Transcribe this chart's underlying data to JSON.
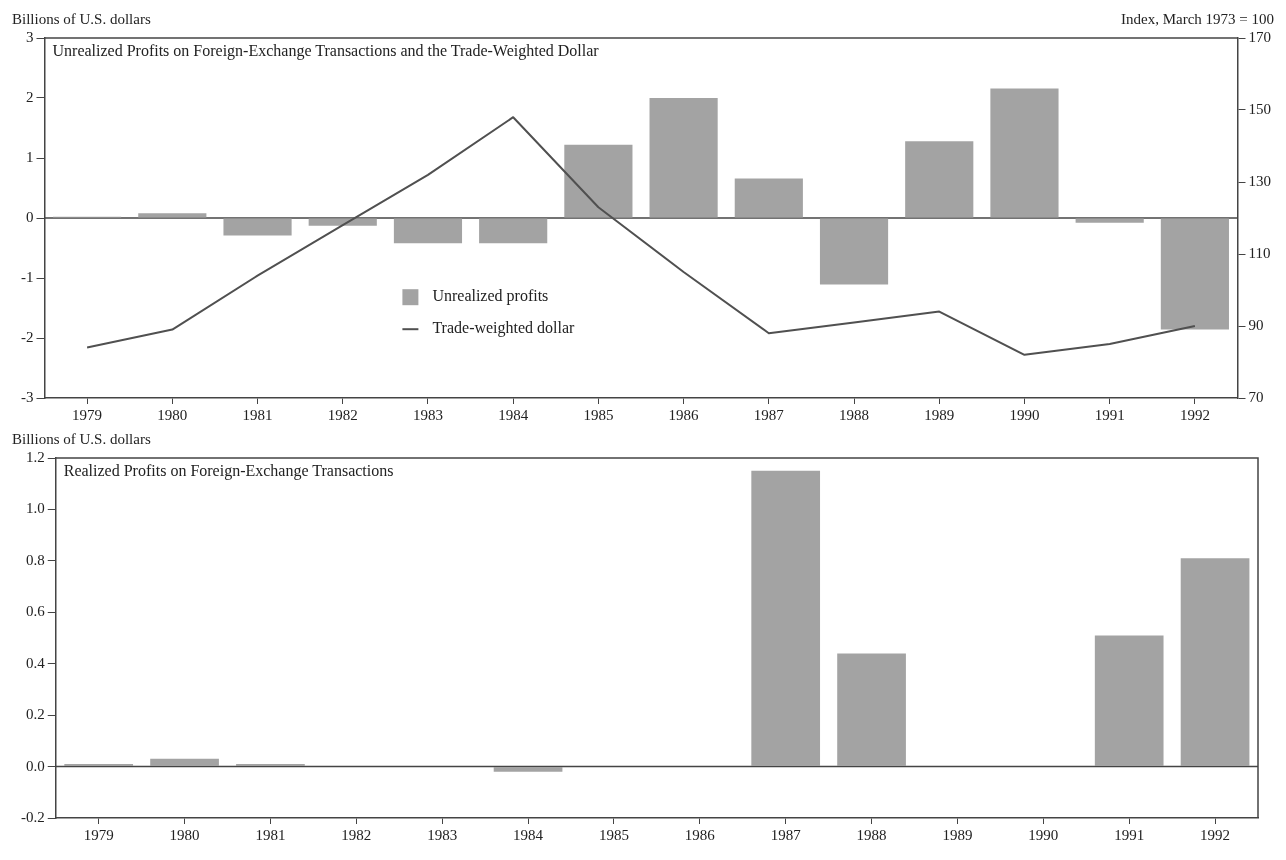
{
  "chart_data": [
    {
      "type": "bar",
      "title": "Unrealized Profits on Foreign-Exchange Transactions and the Trade-Weighted Dollar",
      "ylabel": "Billions of U.S. dollars",
      "y2label": "Index, March 1973 = 100",
      "categories": [
        "1979",
        "1980",
        "1981",
        "1982",
        "1983",
        "1984",
        "1985",
        "1986",
        "1987",
        "1988",
        "1989",
        "1990",
        "1991",
        "1992"
      ],
      "series": [
        {
          "name": "Unrealized profits",
          "color": "#a3a3a3",
          "values": [
            0.02,
            0.08,
            -0.29,
            -0.13,
            -0.42,
            -0.42,
            1.22,
            2.0,
            0.66,
            -1.11,
            1.28,
            2.16,
            -0.08,
            -1.86
          ]
        },
        {
          "name": "Trade-weighted dollar",
          "type": "line",
          "axis": "y2",
          "color": "#505050",
          "values": [
            84,
            89,
            104,
            118,
            132,
            148,
            123,
            105,
            88,
            91,
            94,
            82,
            85,
            90
          ]
        }
      ],
      "ylim": [
        -3,
        3
      ],
      "yticks": [
        -3,
        -2,
        -1,
        0,
        1,
        2,
        3
      ],
      "y2lim": [
        70,
        170
      ],
      "y2ticks": [
        70,
        90,
        110,
        130,
        150,
        170
      ],
      "ref_lines": [
        {
          "axis": "y",
          "value": 0
        }
      ],
      "grid": false,
      "legend": "center",
      "marker": "none"
    },
    {
      "type": "bar",
      "title": "Realized Profits on Foreign-Exchange Transactions",
      "ylabel": "Billions of U.S. dollars",
      "categories": [
        "1979",
        "1980",
        "1981",
        "1982",
        "1983",
        "1984",
        "1985",
        "1986",
        "1987",
        "1988",
        "1989",
        "1990",
        "1991",
        "1992"
      ],
      "series": [
        {
          "color": "#a3a3a3",
          "values": [
            0.01,
            0.03,
            0.01,
            0,
            0,
            -0.02,
            0,
            0,
            1.15,
            0.44,
            0,
            0,
            0.51,
            0.81
          ]
        }
      ],
      "ylim": [
        -0.2,
        1.2
      ],
      "yticks": [
        {
          "value": -0.2,
          "label": "-0.2"
        },
        {
          "value": 0,
          "label": "0.0"
        },
        0.2,
        0.4,
        0.6,
        0.8,
        {
          "value": 1,
          "label": "1.0"
        },
        1.2
      ],
      "ref_lines": [
        {
          "axis": "y",
          "value": 0
        }
      ],
      "grid": false,
      "legend": false
    }
  ]
}
